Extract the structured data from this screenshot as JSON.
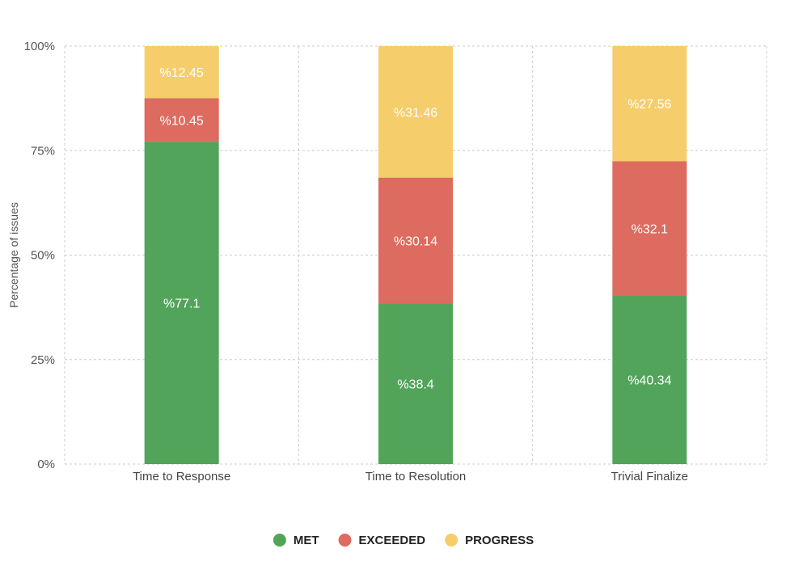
{
  "chart_data": {
    "type": "bar",
    "stacked": true,
    "title": "",
    "xlabel": "",
    "ylabel": "Percentage of issues",
    "ylim": [
      0,
      100
    ],
    "yticks": [
      0,
      25,
      50,
      75,
      100
    ],
    "ytick_labels": [
      "0%",
      "25%",
      "50%",
      "75%",
      "100%"
    ],
    "categories": [
      "Time to Response",
      "Time to Resolution",
      "Trivial Finalize"
    ],
    "series": [
      {
        "name": "MET",
        "color": "#52a45a",
        "values": [
          77.1,
          38.4,
          40.34
        ],
        "labels": [
          "%77.1",
          "%38.4",
          "%40.34"
        ]
      },
      {
        "name": "EXCEEDED",
        "color": "#dd6b5f",
        "values": [
          10.45,
          30.14,
          32.1
        ],
        "labels": [
          "%10.45",
          "%30.14",
          "%32.1"
        ]
      },
      {
        "name": "PROGRESS",
        "color": "#f5ce6b",
        "values": [
          12.45,
          31.46,
          27.56
        ],
        "labels": [
          "%12.45",
          "%31.46",
          "%27.56"
        ]
      }
    ],
    "grid": true,
    "legend_position": "bottom-center"
  }
}
